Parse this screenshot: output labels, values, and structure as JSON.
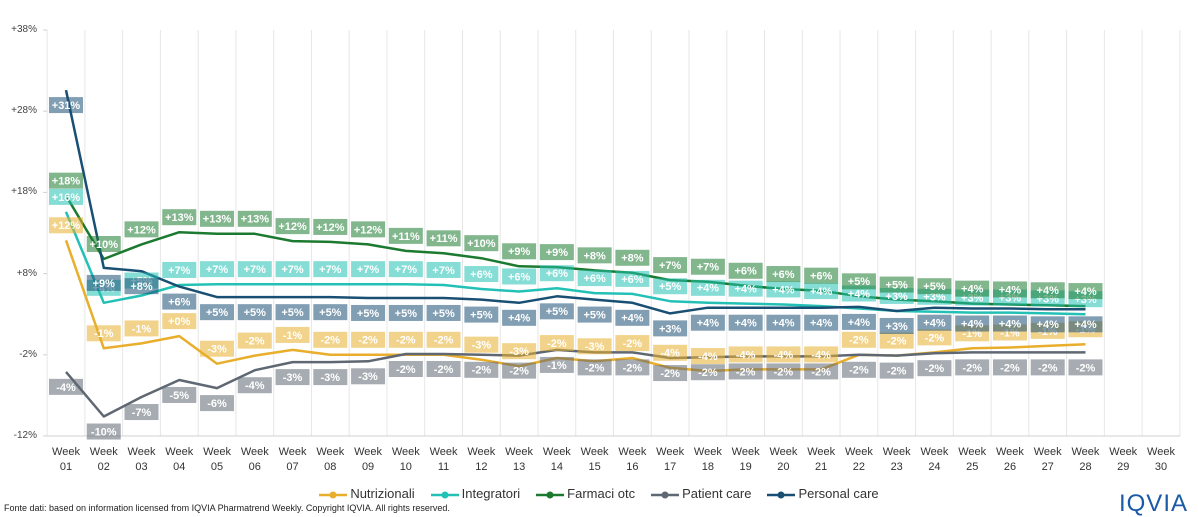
{
  "chart_data": {
    "type": "line",
    "categories": [
      "Week 01",
      "Week 02",
      "Week 03",
      "Week 04",
      "Week 05",
      "Week 06",
      "Week 07",
      "Week 08",
      "Week 09",
      "Week 10",
      "Week 11",
      "Week 12",
      "Week 13",
      "Week 14",
      "Week 15",
      "Week 16",
      "Week 17",
      "Week 18",
      "Week 19",
      "Week 20",
      "Week 21",
      "Week 22",
      "Week 23",
      "Week 24",
      "Week 25",
      "Week 26",
      "Week 27",
      "Week 28",
      "Week 29",
      "Week 30"
    ],
    "ylim": [
      -12,
      38
    ],
    "yticks": [
      {
        "value": -12,
        "label": "-12%"
      },
      {
        "value": -2,
        "label": "-2%"
      },
      {
        "value": 8,
        "label": "+8%"
      },
      {
        "value": 18,
        "label": "+18%"
      },
      {
        "value": 28,
        "label": "+28%"
      },
      {
        "value": 38,
        "label": "+38%"
      }
    ],
    "legend": "bottom",
    "series": [
      {
        "name": "Nutrizionali",
        "color": "#e8ae2c",
        "values": [
          12.1,
          -1.2,
          -0.6,
          0.3,
          -3.1,
          -2.1,
          -1.4,
          -2,
          -2,
          -2,
          -2,
          -2.6,
          -3.4,
          -2.4,
          -2.8,
          -2.4,
          -3.6,
          -4,
          -3.8,
          -3.8,
          -3.8,
          -2,
          -2.1,
          -1.7,
          -1.2,
          -1.1,
          -0.9,
          -0.7,
          null,
          null
        ],
        "value_labels": [
          "+12%",
          "-1%",
          "-1%",
          "+0%",
          "-3%",
          "-2%",
          "-1%",
          "-2%",
          "-2%",
          "-2%",
          "-2%",
          "-3%",
          "-3%",
          "-2%",
          "-3%",
          "-2%",
          "-4%",
          "-4%",
          "-4%",
          "-4%",
          "-4%",
          "-2%",
          "-2%",
          "-2%",
          "-1%",
          "-1%",
          "-1%",
          "-1%",
          null,
          null
        ]
      },
      {
        "name": "Integratori",
        "color": "#23c1b5",
        "values": [
          15.6,
          4.4,
          5.3,
          6.6,
          6.7,
          6.7,
          6.7,
          6.7,
          6.7,
          6.7,
          6.6,
          6.1,
          5.8,
          6.2,
          5.6,
          5.5,
          4.6,
          4.4,
          4.3,
          4.2,
          4.0,
          3.7,
          3.4,
          3.3,
          3.2,
          3.2,
          3.1,
          3.0,
          null,
          null
        ],
        "value_labels": [
          "+16%",
          "+4%",
          "+5%",
          "+7%",
          "+7%",
          "+7%",
          "+7%",
          "+7%",
          "+7%",
          "+7%",
          "+7%",
          "+6%",
          "+6%",
          "+6%",
          "+6%",
          "+6%",
          "+5%",
          "+4%",
          "+4%",
          "+4%",
          "+4%",
          "+4%",
          "+3%",
          "+3%",
          "+3%",
          "+3%",
          "+3%",
          "+3%",
          null,
          null
        ]
      },
      {
        "name": "Farmaci otc",
        "color": "#1b7a2f",
        "values": [
          17.6,
          9.8,
          11.6,
          13.1,
          12.9,
          12.9,
          12,
          11.9,
          11.6,
          10.8,
          10.5,
          9.9,
          8.9,
          8.8,
          8.4,
          8.1,
          7.2,
          7,
          6.5,
          6.1,
          5.9,
          5.2,
          4.8,
          4.6,
          4.3,
          4.2,
          4.1,
          4.0,
          null,
          null
        ],
        "value_labels": [
          "+18%",
          "+10%",
          "+12%",
          "+13%",
          "+13%",
          "+13%",
          "+12%",
          "+12%",
          "+12%",
          "+11%",
          "+11%",
          "+10%",
          "+9%",
          "+9%",
          "+8%",
          "+8%",
          "+7%",
          "+7%",
          "+6%",
          "+6%",
          "+6%",
          "+5%",
          "+5%",
          "+5%",
          "+4%",
          "+4%",
          "+4%",
          "+4%",
          null,
          null
        ]
      },
      {
        "name": "Patient care",
        "color": "#5f6872",
        "values": [
          -4.1,
          -9.6,
          -7.2,
          -5.1,
          -6.1,
          -3.9,
          -2.9,
          -2.9,
          -2.8,
          -1.9,
          -1.9,
          -2.0,
          -2.1,
          -1.4,
          -1.7,
          -1.7,
          -2.4,
          -2.3,
          -2.2,
          -2.2,
          -2.2,
          -2.0,
          -2.1,
          -1.8,
          -1.7,
          -1.7,
          -1.7,
          -1.7,
          null,
          null
        ],
        "value_labels": [
          "-4%",
          "-10%",
          "-7%",
          "-5%",
          "-6%",
          "-4%",
          "-3%",
          "-3%",
          "-3%",
          "-2%",
          "-2%",
          "-2%",
          "-2%",
          "-1%",
          "-2%",
          "-2%",
          "-2%",
          "-2%",
          "-2%",
          "-2%",
          "-2%",
          "-2%",
          "-2%",
          "-2%",
          "-2%",
          "-2%",
          "-2%",
          "-2%",
          null,
          null
        ]
      },
      {
        "name": "Personal care",
        "color": "#1a4f74",
        "values": [
          30.6,
          8.7,
          8.3,
          6.4,
          5.1,
          5.1,
          5.1,
          5.1,
          5.0,
          5.0,
          5.0,
          4.8,
          4.4,
          5.2,
          4.8,
          4.4,
          3.1,
          3.8,
          3.8,
          3.8,
          3.8,
          3.9,
          3.4,
          3.8,
          3.7,
          3.7,
          3.6,
          3.6,
          null,
          null
        ],
        "value_labels": [
          "+31%",
          "+9%",
          "+8%",
          "+6%",
          "+5%",
          "+5%",
          "+5%",
          "+5%",
          "+5%",
          "+5%",
          "+5%",
          "+5%",
          "+4%",
          "+5%",
          "+5%",
          "+4%",
          "+3%",
          "+4%",
          "+4%",
          "+4%",
          "+4%",
          "+4%",
          "+3%",
          "+4%",
          "+4%",
          "+4%",
          "+4%",
          "+4%",
          null,
          null
        ]
      }
    ],
    "source": "Fonte dati: based on information licensed from IQVIA Pharmatrend Weekly. Copyright IQVIA. All rights reserved.",
    "logo": "IQVIA"
  }
}
